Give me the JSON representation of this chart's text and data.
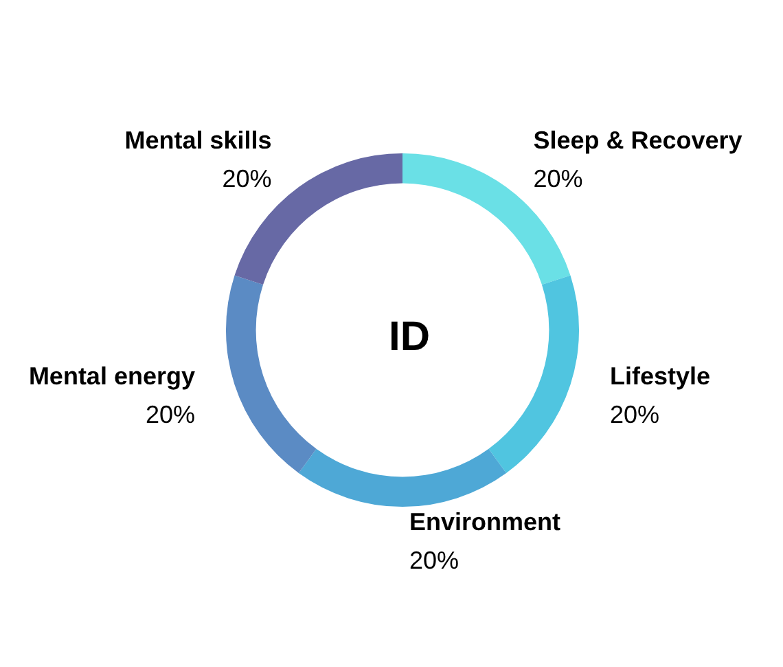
{
  "chart_data": {
    "type": "donut",
    "title": "ID",
    "categories": [
      "Sleep & Recovery",
      "Lifestyle",
      "Environment",
      "Mental energy",
      "Mental skills"
    ],
    "values": [
      20,
      20,
      20,
      20,
      20
    ],
    "value_labels": [
      "20%",
      "20%",
      "20%",
      "20%",
      "20%"
    ],
    "colors": [
      "#6ae0e6",
      "#50c5e0",
      "#4ea8d6",
      "#5b8bc4",
      "#6769a5"
    ],
    "legend": false
  }
}
